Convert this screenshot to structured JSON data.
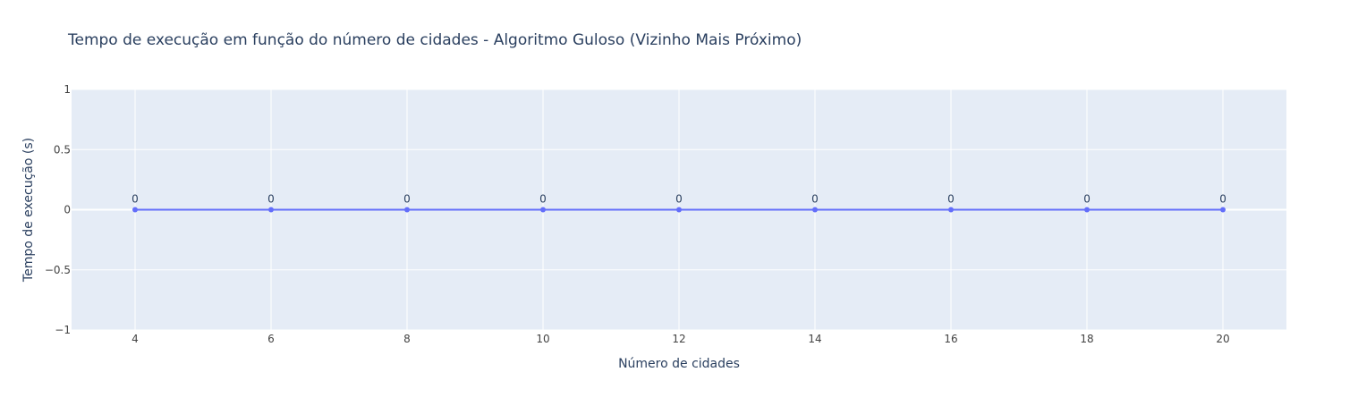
{
  "chart_data": {
    "type": "line",
    "title": "Tempo de execução em função do número de cidades - Algoritmo Guloso (Vizinho Mais Próximo)",
    "xlabel": "Número de cidades",
    "ylabel": "Tempo de execução (s)",
    "x": [
      4,
      6,
      8,
      10,
      12,
      14,
      16,
      18,
      20
    ],
    "series": [
      {
        "values": [
          0,
          0,
          0,
          0,
          0,
          0,
          0,
          0,
          0
        ],
        "data_labels": [
          "0",
          "0",
          "0",
          "0",
          "0",
          "0",
          "0",
          "0",
          "0"
        ],
        "color": "#636efa",
        "mode": "lines+markers+text"
      }
    ],
    "xlim": [
      3.066,
      20.934
    ],
    "ylim": [
      -1,
      1
    ],
    "x_ticks": [
      4,
      6,
      8,
      10,
      12,
      14,
      16,
      18,
      20
    ],
    "x_tick_labels": [
      "4",
      "6",
      "8",
      "10",
      "12",
      "14",
      "16",
      "18",
      "20"
    ],
    "y_ticks": [
      -1,
      -0.5,
      0,
      0.5,
      1
    ],
    "y_tick_labels": [
      "−1",
      "−0.5",
      "0",
      "0.5",
      "1"
    ],
    "grid": true,
    "legend": "none",
    "colors": {
      "plot_background": "#e5ecf6",
      "grid": "#ffffff",
      "text": "#2a3f5f",
      "tick_text": "#444444"
    }
  }
}
